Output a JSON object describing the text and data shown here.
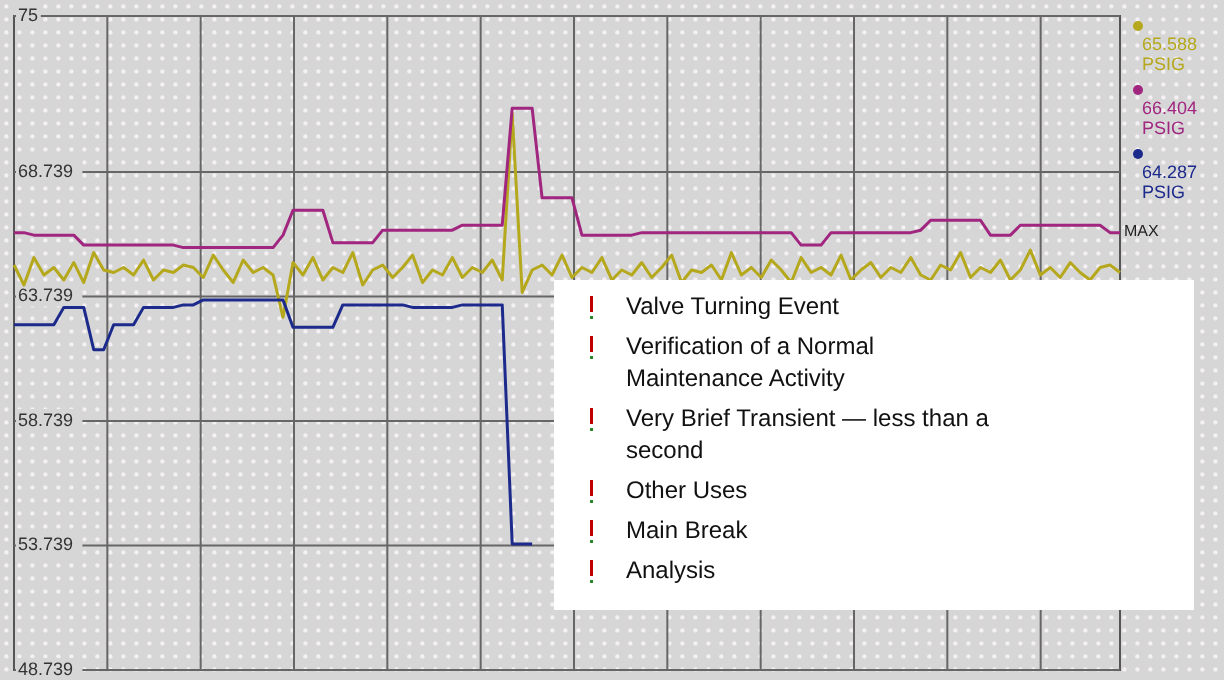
{
  "chart_data": {
    "type": "line",
    "categories": [
      null,
      null,
      null,
      null,
      null,
      null,
      null,
      null,
      null,
      null,
      null,
      null,
      null,
      null,
      null,
      null,
      null,
      null,
      null,
      null,
      null,
      null,
      null,
      null,
      null,
      null,
      null,
      null,
      null,
      null,
      null,
      null,
      null,
      null,
      null,
      null,
      null,
      null,
      null,
      null,
      null,
      null,
      null,
      null,
      null,
      null,
      null,
      null,
      null,
      null,
      null,
      null,
      null,
      null,
      null,
      null,
      null,
      null,
      null,
      null,
      null,
      null,
      null,
      null,
      null,
      null,
      null,
      null,
      null,
      null,
      null,
      null,
      null,
      null,
      null,
      null,
      null,
      null,
      null,
      null,
      null,
      null,
      null,
      null,
      null,
      null,
      null,
      null,
      null,
      null,
      null,
      null,
      null,
      null,
      null,
      null,
      null,
      null,
      null,
      null,
      null,
      null,
      null,
      null,
      null,
      null,
      null,
      null,
      null,
      null,
      null,
      null
    ],
    "series": [
      {
        "name": "65.588 PSIG",
        "color": "#b5a81c",
        "values": [
          65.0,
          64.2,
          65.3,
          64.6,
          64.9,
          64.4,
          65.1,
          64.3,
          65.5,
          64.8,
          64.7,
          64.9,
          64.6,
          65.2,
          64.4,
          64.8,
          64.7,
          65.0,
          64.9,
          64.5,
          65.4,
          64.8,
          64.3,
          65.2,
          64.7,
          64.9,
          64.6,
          62.9,
          65.1,
          64.6,
          65.3,
          64.4,
          64.9,
          64.7,
          65.5,
          64.2,
          64.8,
          65.0,
          64.5,
          64.9,
          65.4,
          64.3,
          64.8,
          64.6,
          65.3,
          64.5,
          64.9,
          64.7,
          65.2,
          64.4,
          71.1,
          63.9,
          64.8,
          65.0,
          64.6,
          65.4,
          64.5,
          64.9,
          64.7,
          65.3,
          64.4,
          64.8,
          64.6,
          65.1,
          64.5,
          64.9,
          65.4,
          64.3,
          64.8,
          64.7,
          65.0,
          64.4,
          65.5,
          64.6,
          64.9,
          64.5,
          65.2,
          64.8,
          64.3,
          65.3,
          64.7,
          64.9,
          64.6,
          65.4,
          64.4,
          64.8,
          65.1,
          64.5,
          64.9,
          64.7,
          65.3,
          64.6,
          64.4,
          65.0,
          64.8,
          65.5,
          64.5,
          64.9,
          64.7,
          65.2,
          64.4,
          64.8,
          65.6,
          64.6,
          64.9,
          64.5,
          65.1,
          64.7,
          64.4,
          64.9,
          65.0,
          64.7
        ]
      },
      {
        "name": "66.404 PSIG",
        "color": "#a0267f",
        "values": [
          66.3,
          66.3,
          66.2,
          66.2,
          66.2,
          66.2,
          66.2,
          65.8,
          65.8,
          65.8,
          65.8,
          65.8,
          65.8,
          65.8,
          65.8,
          65.8,
          65.8,
          65.7,
          65.7,
          65.7,
          65.7,
          65.7,
          65.7,
          65.7,
          65.7,
          65.7,
          65.7,
          66.2,
          67.2,
          67.2,
          67.2,
          67.2,
          65.9,
          65.9,
          65.9,
          65.9,
          65.9,
          66.4,
          66.4,
          66.4,
          66.4,
          66.4,
          66.4,
          66.4,
          66.4,
          66.6,
          66.6,
          66.6,
          66.6,
          66.6,
          71.3,
          71.3,
          71.3,
          67.7,
          67.7,
          67.7,
          67.7,
          66.2,
          66.2,
          66.2,
          66.2,
          66.2,
          66.2,
          66.3,
          66.3,
          66.3,
          66.3,
          66.3,
          66.3,
          66.3,
          66.3,
          66.3,
          66.3,
          66.3,
          66.3,
          66.3,
          66.3,
          66.3,
          66.3,
          65.8,
          65.8,
          65.8,
          66.3,
          66.3,
          66.3,
          66.3,
          66.3,
          66.3,
          66.3,
          66.3,
          66.3,
          66.4,
          66.8,
          66.8,
          66.8,
          66.8,
          66.8,
          66.8,
          66.2,
          66.2,
          66.2,
          66.6,
          66.6,
          66.6,
          66.6,
          66.6,
          66.6,
          66.6,
          66.6,
          66.6,
          66.3,
          66.3
        ]
      },
      {
        "name": "64.287 PSIG",
        "color": "#1c2a8c",
        "values": [
          62.6,
          62.6,
          62.6,
          62.6,
          62.6,
          63.3,
          63.3,
          63.3,
          61.6,
          61.6,
          62.6,
          62.6,
          62.6,
          63.3,
          63.3,
          63.3,
          63.3,
          63.4,
          63.4,
          63.6,
          63.6,
          63.6,
          63.6,
          63.6,
          63.6,
          63.6,
          63.6,
          63.6,
          62.5,
          62.5,
          62.5,
          62.5,
          62.5,
          63.4,
          63.4,
          63.4,
          63.4,
          63.4,
          63.4,
          63.4,
          63.3,
          63.3,
          63.3,
          63.3,
          63.3,
          63.4,
          63.4,
          63.4,
          63.4,
          63.4,
          53.8,
          53.8,
          53.8,
          null,
          null,
          null,
          null,
          null,
          null,
          null,
          null,
          null,
          null,
          null,
          null,
          null,
          null,
          null,
          null,
          null,
          null,
          null,
          null,
          null,
          null,
          null,
          null,
          null,
          null,
          null,
          null,
          null,
          null,
          null,
          null,
          null,
          null,
          null,
          null,
          null,
          null,
          null,
          null,
          null,
          null,
          null,
          null,
          null,
          null,
          null,
          null,
          null,
          null,
          null,
          null,
          null,
          null,
          null,
          null,
          null,
          null,
          null
        ]
      }
    ],
    "ylim": [
      48.739,
      75
    ],
    "yticks": [
      48.739,
      53.739,
      58.739,
      63.739,
      68.739,
      75
    ],
    "grid": true,
    "legend": "right",
    "tick_labels": "y",
    "annotations": [
      "MAX",
      "Valve Turning Event",
      "Verification of a Normal Maintenance Activity",
      "Very Brief Transient — less than a second",
      "Other Uses",
      "Main Break",
      "Analysis"
    ]
  }
}
